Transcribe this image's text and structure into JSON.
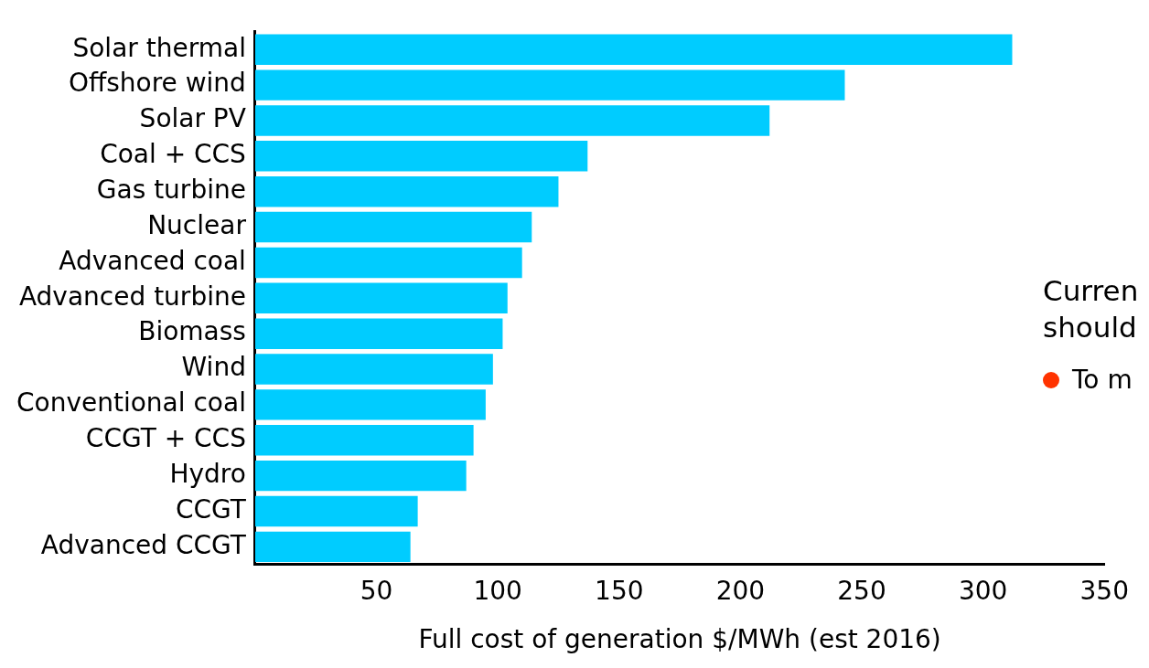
{
  "chart_data": {
    "type": "bar",
    "orientation": "horizontal",
    "xlabel": "Full cost of generation $/MWh (est 2016)",
    "categories": [
      "Solar thermal",
      "Offshore wind",
      "Solar PV",
      "Coal + CCS",
      "Gas turbine",
      "Nuclear",
      "Advanced coal",
      "Advanced turbine",
      "Biomass",
      "Wind",
      "Conventional coal",
      "CCGT + CCS",
      "Hydro",
      "CCGT",
      "Advanced CCGT"
    ],
    "values": [
      312,
      243,
      212,
      137,
      125,
      114,
      110,
      104,
      102,
      98,
      95,
      90,
      87,
      67,
      64
    ],
    "color": "#00ccff",
    "xlim": [
      0,
      350
    ],
    "xticks": [
      50,
      100,
      150,
      200,
      250,
      300,
      350
    ],
    "grid": false,
    "legend": false,
    "annotations": [
      "Curren",
      "should",
      "To m"
    ]
  }
}
